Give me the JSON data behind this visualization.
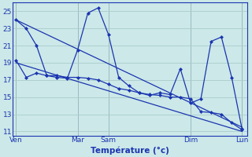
{
  "background_color": "#cce8e8",
  "grid_color": "#aacccc",
  "line_color": "#1a35b0",
  "xlabel": "Température (°c)",
  "ylim": [
    10.5,
    26.0
  ],
  "yticks": [
    11,
    13,
    15,
    17,
    19,
    21,
    23,
    25
  ],
  "x_tick_labels": [
    "Ven",
    "",
    "Mar",
    "Sam",
    "",
    "Dim",
    "",
    "Lun"
  ],
  "x_tick_positions": [
    0,
    3,
    6,
    9,
    13,
    17,
    19,
    22
  ],
  "figsize": [
    3.2,
    2.0
  ],
  "dpi": 100,
  "series1_x": [
    0,
    1,
    2,
    3,
    4,
    5,
    6,
    7,
    8,
    9,
    10,
    11,
    12,
    13,
    14,
    15,
    16,
    17,
    18,
    19,
    20,
    21,
    22
  ],
  "series1_y": [
    24.0,
    23.0,
    21.0,
    17.5,
    17.3,
    17.2,
    20.5,
    24.8,
    25.4,
    22.3,
    17.3,
    16.3,
    15.5,
    15.2,
    15.5,
    15.3,
    18.3,
    14.3,
    14.8,
    21.5,
    22.0,
    17.3,
    11.3
  ],
  "series2_x": [
    0,
    1,
    2,
    3,
    4,
    5,
    6,
    7,
    8,
    9,
    10,
    11,
    12,
    13,
    14,
    15,
    16,
    17,
    18,
    19,
    20,
    21,
    22
  ],
  "series2_y": [
    19.3,
    17.3,
    17.8,
    17.5,
    17.5,
    17.3,
    17.3,
    17.2,
    17.0,
    16.5,
    16.0,
    15.8,
    15.5,
    15.3,
    15.2,
    15.0,
    15.0,
    14.8,
    13.3,
    13.2,
    13.0,
    12.0,
    11.2
  ],
  "trend1": [
    24.0,
    11.5
  ],
  "trend2": [
    19.0,
    11.0
  ],
  "xlim": [
    -0.3,
    22.5
  ],
  "vlines": [
    0,
    6,
    9,
    17,
    22
  ],
  "vline_color": "#556677",
  "marker": "D",
  "markersize": 2.0,
  "linewidth": 0.9
}
